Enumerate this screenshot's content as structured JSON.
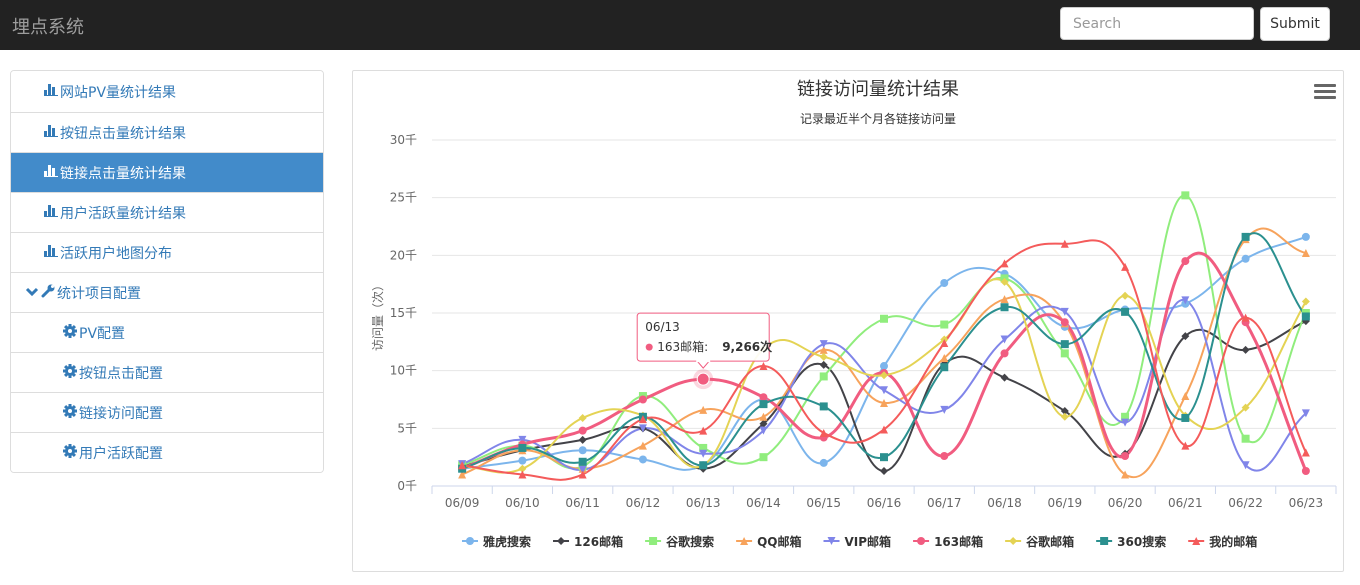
{
  "app": {
    "title": "埋点系统"
  },
  "search": {
    "placeholder": "Search",
    "submit_label": "Submit"
  },
  "sidebar": {
    "items": [
      {
        "label": "网站PV量统计结果",
        "icon": "bar-chart-icon",
        "active": false
      },
      {
        "label": "按钮点击量统计结果",
        "icon": "bar-chart-icon",
        "active": false
      },
      {
        "label": "链接点击量统计结果",
        "icon": "bar-chart-icon",
        "active": true
      },
      {
        "label": "用户活跃量统计结果",
        "icon": "bar-chart-icon",
        "active": false
      },
      {
        "label": "活跃用户地图分布",
        "icon": "bar-chart-icon",
        "active": false
      }
    ],
    "section": {
      "label": "统计项目配置",
      "icon": "wrench-icon",
      "chevron": "chevron-down-icon"
    },
    "sub_items": [
      {
        "label": "PV配置",
        "icon": "gear-icon"
      },
      {
        "label": "按钮点击配置",
        "icon": "gear-icon"
      },
      {
        "label": "链接访问配置",
        "icon": "gear-icon"
      },
      {
        "label": "用户活跃配置",
        "icon": "gear-icon"
      }
    ]
  },
  "chart_data": {
    "type": "line",
    "title": "链接访问量统计结果",
    "subtitle": "记录最近半个月各链接访问量",
    "ylabel": "访问量（次）",
    "xlabel": "",
    "ylim": [
      0,
      30000
    ],
    "yticks": [
      0,
      5000,
      10000,
      15000,
      20000,
      25000,
      30000
    ],
    "ytick_labels": [
      "0千",
      "5千",
      "10千",
      "15千",
      "20千",
      "25千",
      "30千"
    ],
    "categories": [
      "06/09",
      "06/10",
      "06/11",
      "06/12",
      "06/13",
      "06/14",
      "06/15",
      "06/16",
      "06/17",
      "06/18",
      "06/19",
      "06/20",
      "06/21",
      "06/22",
      "06/23"
    ],
    "series": [
      {
        "name": "雅虎搜索",
        "color": "#7cb5ec",
        "marker": "circle",
        "values": [
          1500,
          2200,
          3100,
          2300,
          1800,
          7500,
          2000,
          10400,
          17600,
          18400,
          13800,
          15300,
          15800,
          19700,
          21600
        ]
      },
      {
        "name": "126邮箱",
        "color": "#434348",
        "marker": "diamond",
        "values": [
          1700,
          3100,
          4000,
          5000,
          1500,
          5400,
          10500,
          1300,
          10600,
          9400,
          6500,
          2800,
          13000,
          11800,
          14300
        ]
      },
      {
        "name": "谷歌搜索",
        "color": "#90ed7d",
        "marker": "square",
        "values": [
          1800,
          3500,
          1700,
          7800,
          3300,
          2500,
          9500,
          14500,
          14000,
          18000,
          11500,
          6000,
          25200,
          4100,
          15000
        ]
      },
      {
        "name": "QQ邮箱",
        "color": "#f7a35c",
        "marker": "triangle",
        "values": [
          1000,
          3100,
          1500,
          3500,
          6600,
          6000,
          11800,
          7200,
          11100,
          16200,
          14100,
          1000,
          7800,
          21400,
          20200
        ]
      },
      {
        "name": "VIP邮箱",
        "color": "#8085e9",
        "marker": "triangle-down",
        "values": [
          1900,
          4000,
          1400,
          5000,
          2800,
          4800,
          12300,
          8300,
          6600,
          12700,
          15100,
          5500,
          16100,
          1800,
          6300
        ]
      },
      {
        "name": "163邮箱",
        "color": "#f15c80",
        "marker": "circle",
        "values": [
          1500,
          3600,
          4800,
          7500,
          9266,
          7700,
          4200,
          9800,
          2600,
          11500,
          14200,
          2600,
          19500,
          14200,
          1300
        ]
      },
      {
        "name": "谷歌邮箱",
        "color": "#e4d354",
        "marker": "diamond",
        "values": [
          1700,
          1500,
          5900,
          6100,
          1800,
          11900,
          11200,
          9600,
          12700,
          17700,
          6000,
          16500,
          6100,
          6800,
          16000
        ]
      },
      {
        "name": "360搜索",
        "color": "#2b908f",
        "marker": "square",
        "values": [
          1500,
          3300,
          2100,
          6000,
          1800,
          7100,
          6900,
          2500,
          10300,
          15500,
          12300,
          15100,
          5900,
          21600,
          14700
        ]
      },
      {
        "name": "我的邮箱",
        "color": "#f45b5b",
        "marker": "triangle",
        "values": [
          1800,
          1000,
          1000,
          5800,
          4800,
          10400,
          4600,
          4900,
          12400,
          19300,
          21000,
          19000,
          3500,
          14600,
          2900
        ]
      }
    ],
    "legend_position": "bottom-center",
    "tooltip": {
      "date": "06/13",
      "series": "163邮箱",
      "label": "163邮箱: ",
      "value_text": "9,266次",
      "value": 9266
    }
  }
}
